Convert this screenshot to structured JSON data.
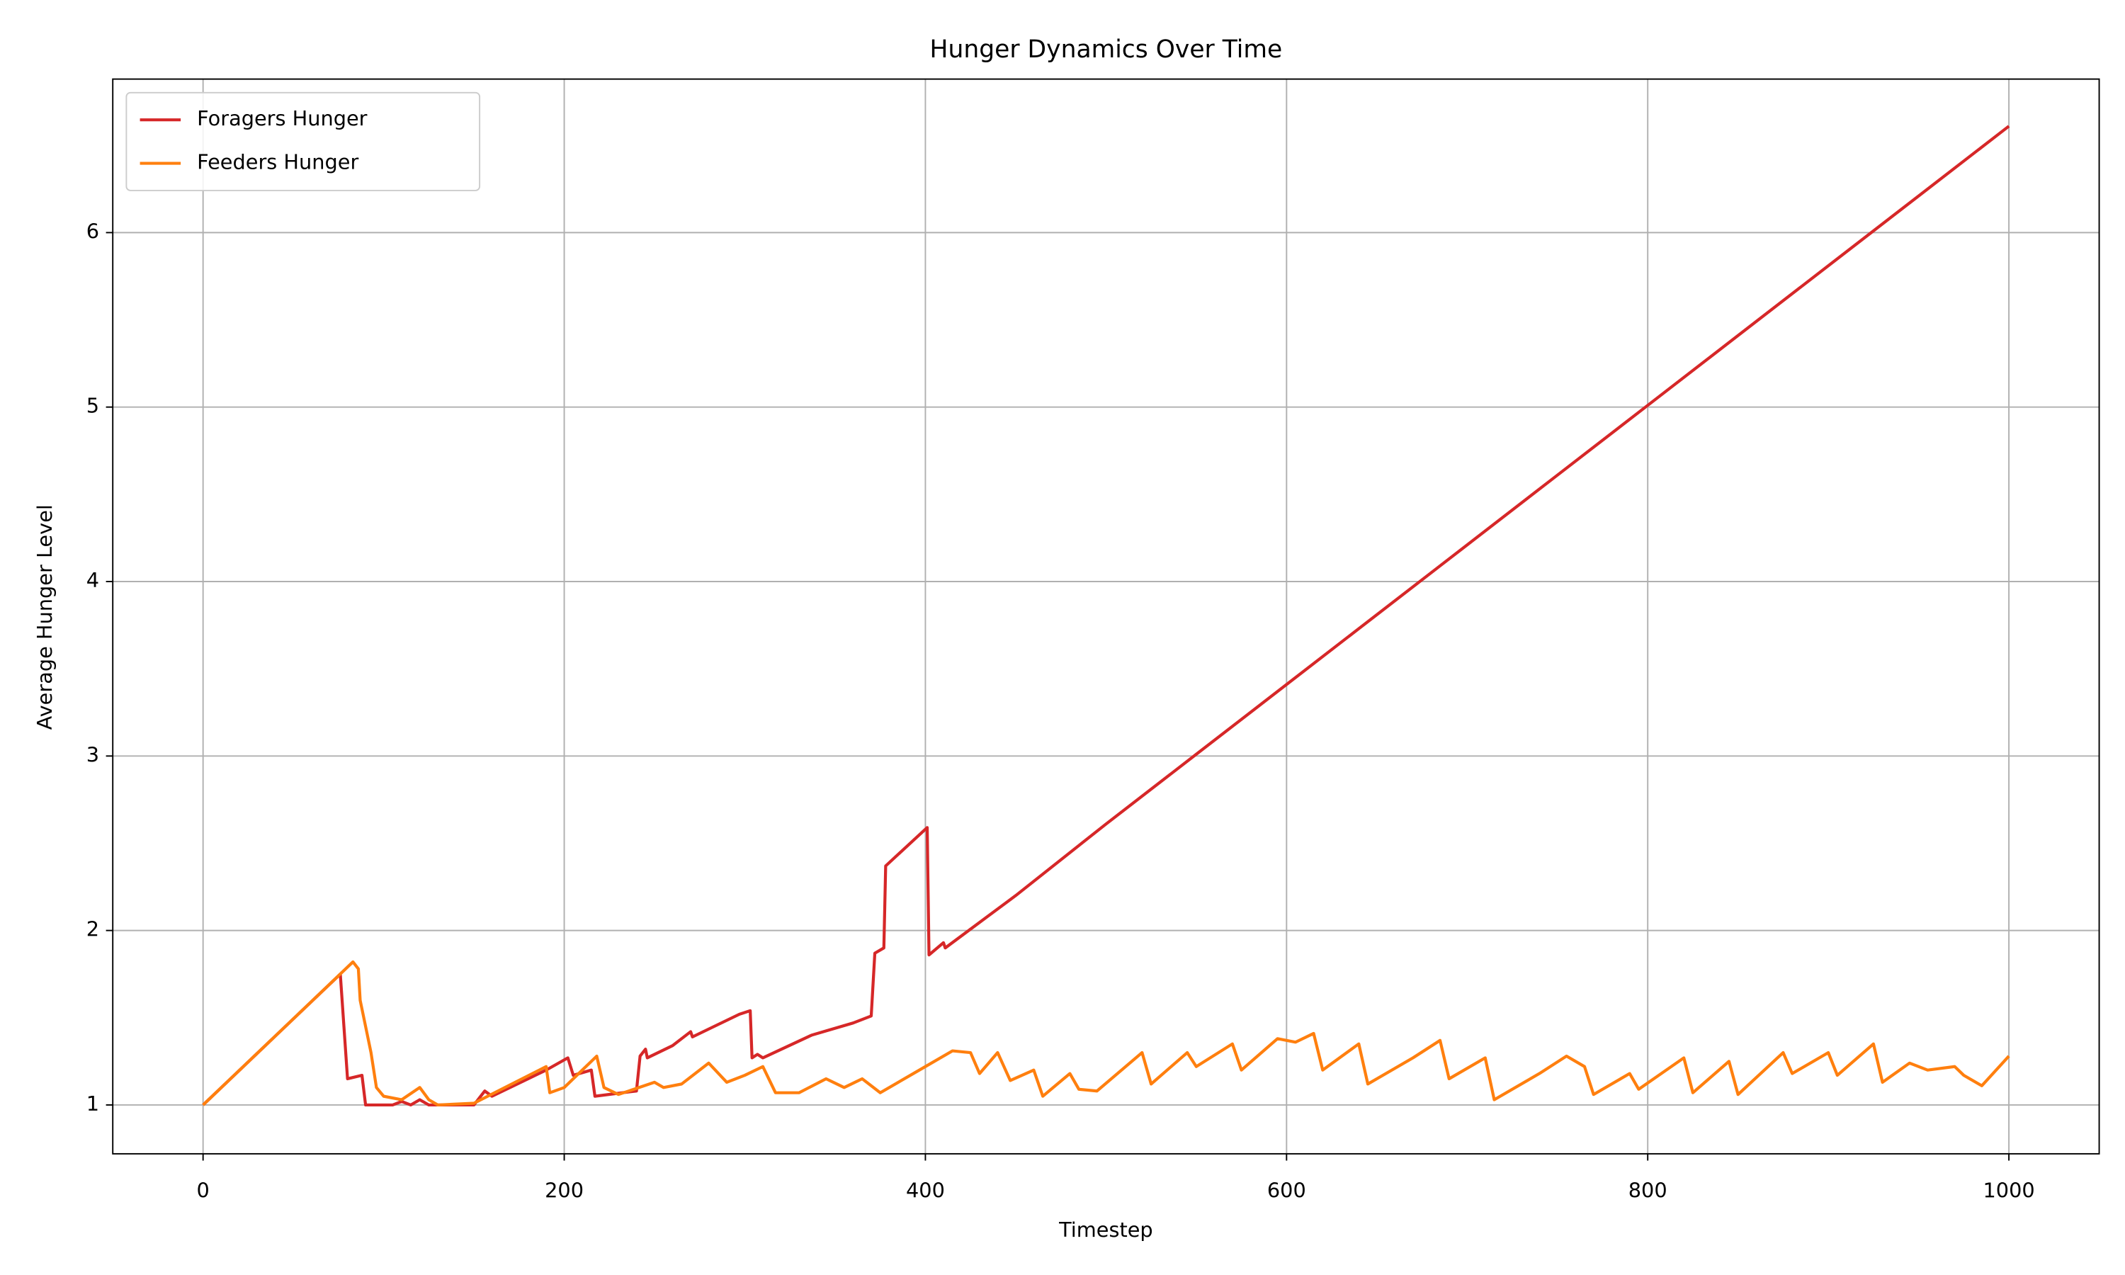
{
  "chart_data": {
    "type": "line",
    "title": "Hunger Dynamics Over Time",
    "xlabel": "Timestep",
    "ylabel": "Average Hunger Level",
    "xlim": [
      -50,
      1050
    ],
    "ylim": [
      0.72,
      6.88
    ],
    "xticks": [
      0,
      200,
      400,
      600,
      800,
      1000
    ],
    "yticks": [
      1,
      2,
      3,
      4,
      5,
      6
    ],
    "grid": true,
    "legend": "upper left",
    "series": [
      {
        "name": "Foragers Hunger",
        "color": "#d62728",
        "x": [
          0,
          76,
          78,
          80,
          88,
          90,
          105,
          110,
          115,
          120,
          125,
          150,
          156,
          160,
          190,
          202,
          205,
          215,
          217,
          240,
          242,
          245,
          246,
          260,
          270,
          271,
          297,
          303,
          304,
          307,
          310,
          337,
          360,
          370,
          372,
          377,
          378,
          401,
          402,
          410,
          411,
          450,
          500,
          550,
          600,
          650,
          700,
          750,
          800,
          850,
          900,
          950,
          1000
        ],
        "values": [
          1,
          1.75,
          1.45,
          1.15,
          1.17,
          1.0,
          1.0,
          1.02,
          1.0,
          1.03,
          1.0,
          1.0,
          1.08,
          1.05,
          1.2,
          1.27,
          1.17,
          1.2,
          1.05,
          1.08,
          1.28,
          1.32,
          1.27,
          1.34,
          1.42,
          1.39,
          1.52,
          1.54,
          1.27,
          1.29,
          1.27,
          1.4,
          1.47,
          1.51,
          1.87,
          1.9,
          2.37,
          2.59,
          1.86,
          1.93,
          1.9,
          2.2,
          2.61,
          3.01,
          3.41,
          3.81,
          4.21,
          4.61,
          5.01,
          5.41,
          5.81,
          6.21,
          6.61
        ]
      },
      {
        "name": "Feeders Hunger",
        "color": "#ff7f0e",
        "x": [
          0,
          83,
          86,
          87,
          90,
          93,
          96,
          100,
          110,
          120,
          125,
          130,
          150,
          190,
          192,
          200,
          210,
          218,
          222,
          230,
          250,
          255,
          265,
          280,
          290,
          300,
          310,
          317,
          330,
          345,
          355,
          365,
          375,
          400,
          415,
          425,
          430,
          440,
          447,
          460,
          465,
          480,
          485,
          495,
          520,
          525,
          545,
          550,
          570,
          575,
          595,
          605,
          615,
          620,
          640,
          645,
          670,
          685,
          690,
          710,
          715,
          740,
          755,
          765,
          770,
          790,
          795,
          820,
          825,
          845,
          850,
          875,
          880,
          900,
          905,
          925,
          930,
          945,
          955,
          970,
          975,
          985,
          1000
        ],
        "values": [
          1,
          1.82,
          1.78,
          1.6,
          1.45,
          1.3,
          1.1,
          1.05,
          1.03,
          1.1,
          1.03,
          1.0,
          1.01,
          1.22,
          1.07,
          1.1,
          1.2,
          1.28,
          1.1,
          1.06,
          1.13,
          1.1,
          1.12,
          1.24,
          1.13,
          1.17,
          1.22,
          1.07,
          1.07,
          1.15,
          1.1,
          1.15,
          1.07,
          1.22,
          1.31,
          1.3,
          1.18,
          1.3,
          1.14,
          1.2,
          1.05,
          1.18,
          1.09,
          1.08,
          1.3,
          1.12,
          1.3,
          1.22,
          1.35,
          1.2,
          1.38,
          1.36,
          1.41,
          1.2,
          1.35,
          1.12,
          1.27,
          1.37,
          1.15,
          1.27,
          1.03,
          1.18,
          1.28,
          1.22,
          1.06,
          1.18,
          1.09,
          1.27,
          1.07,
          1.25,
          1.06,
          1.3,
          1.18,
          1.3,
          1.17,
          1.35,
          1.13,
          1.24,
          1.2,
          1.22,
          1.17,
          1.11,
          1.28
        ]
      }
    ]
  }
}
